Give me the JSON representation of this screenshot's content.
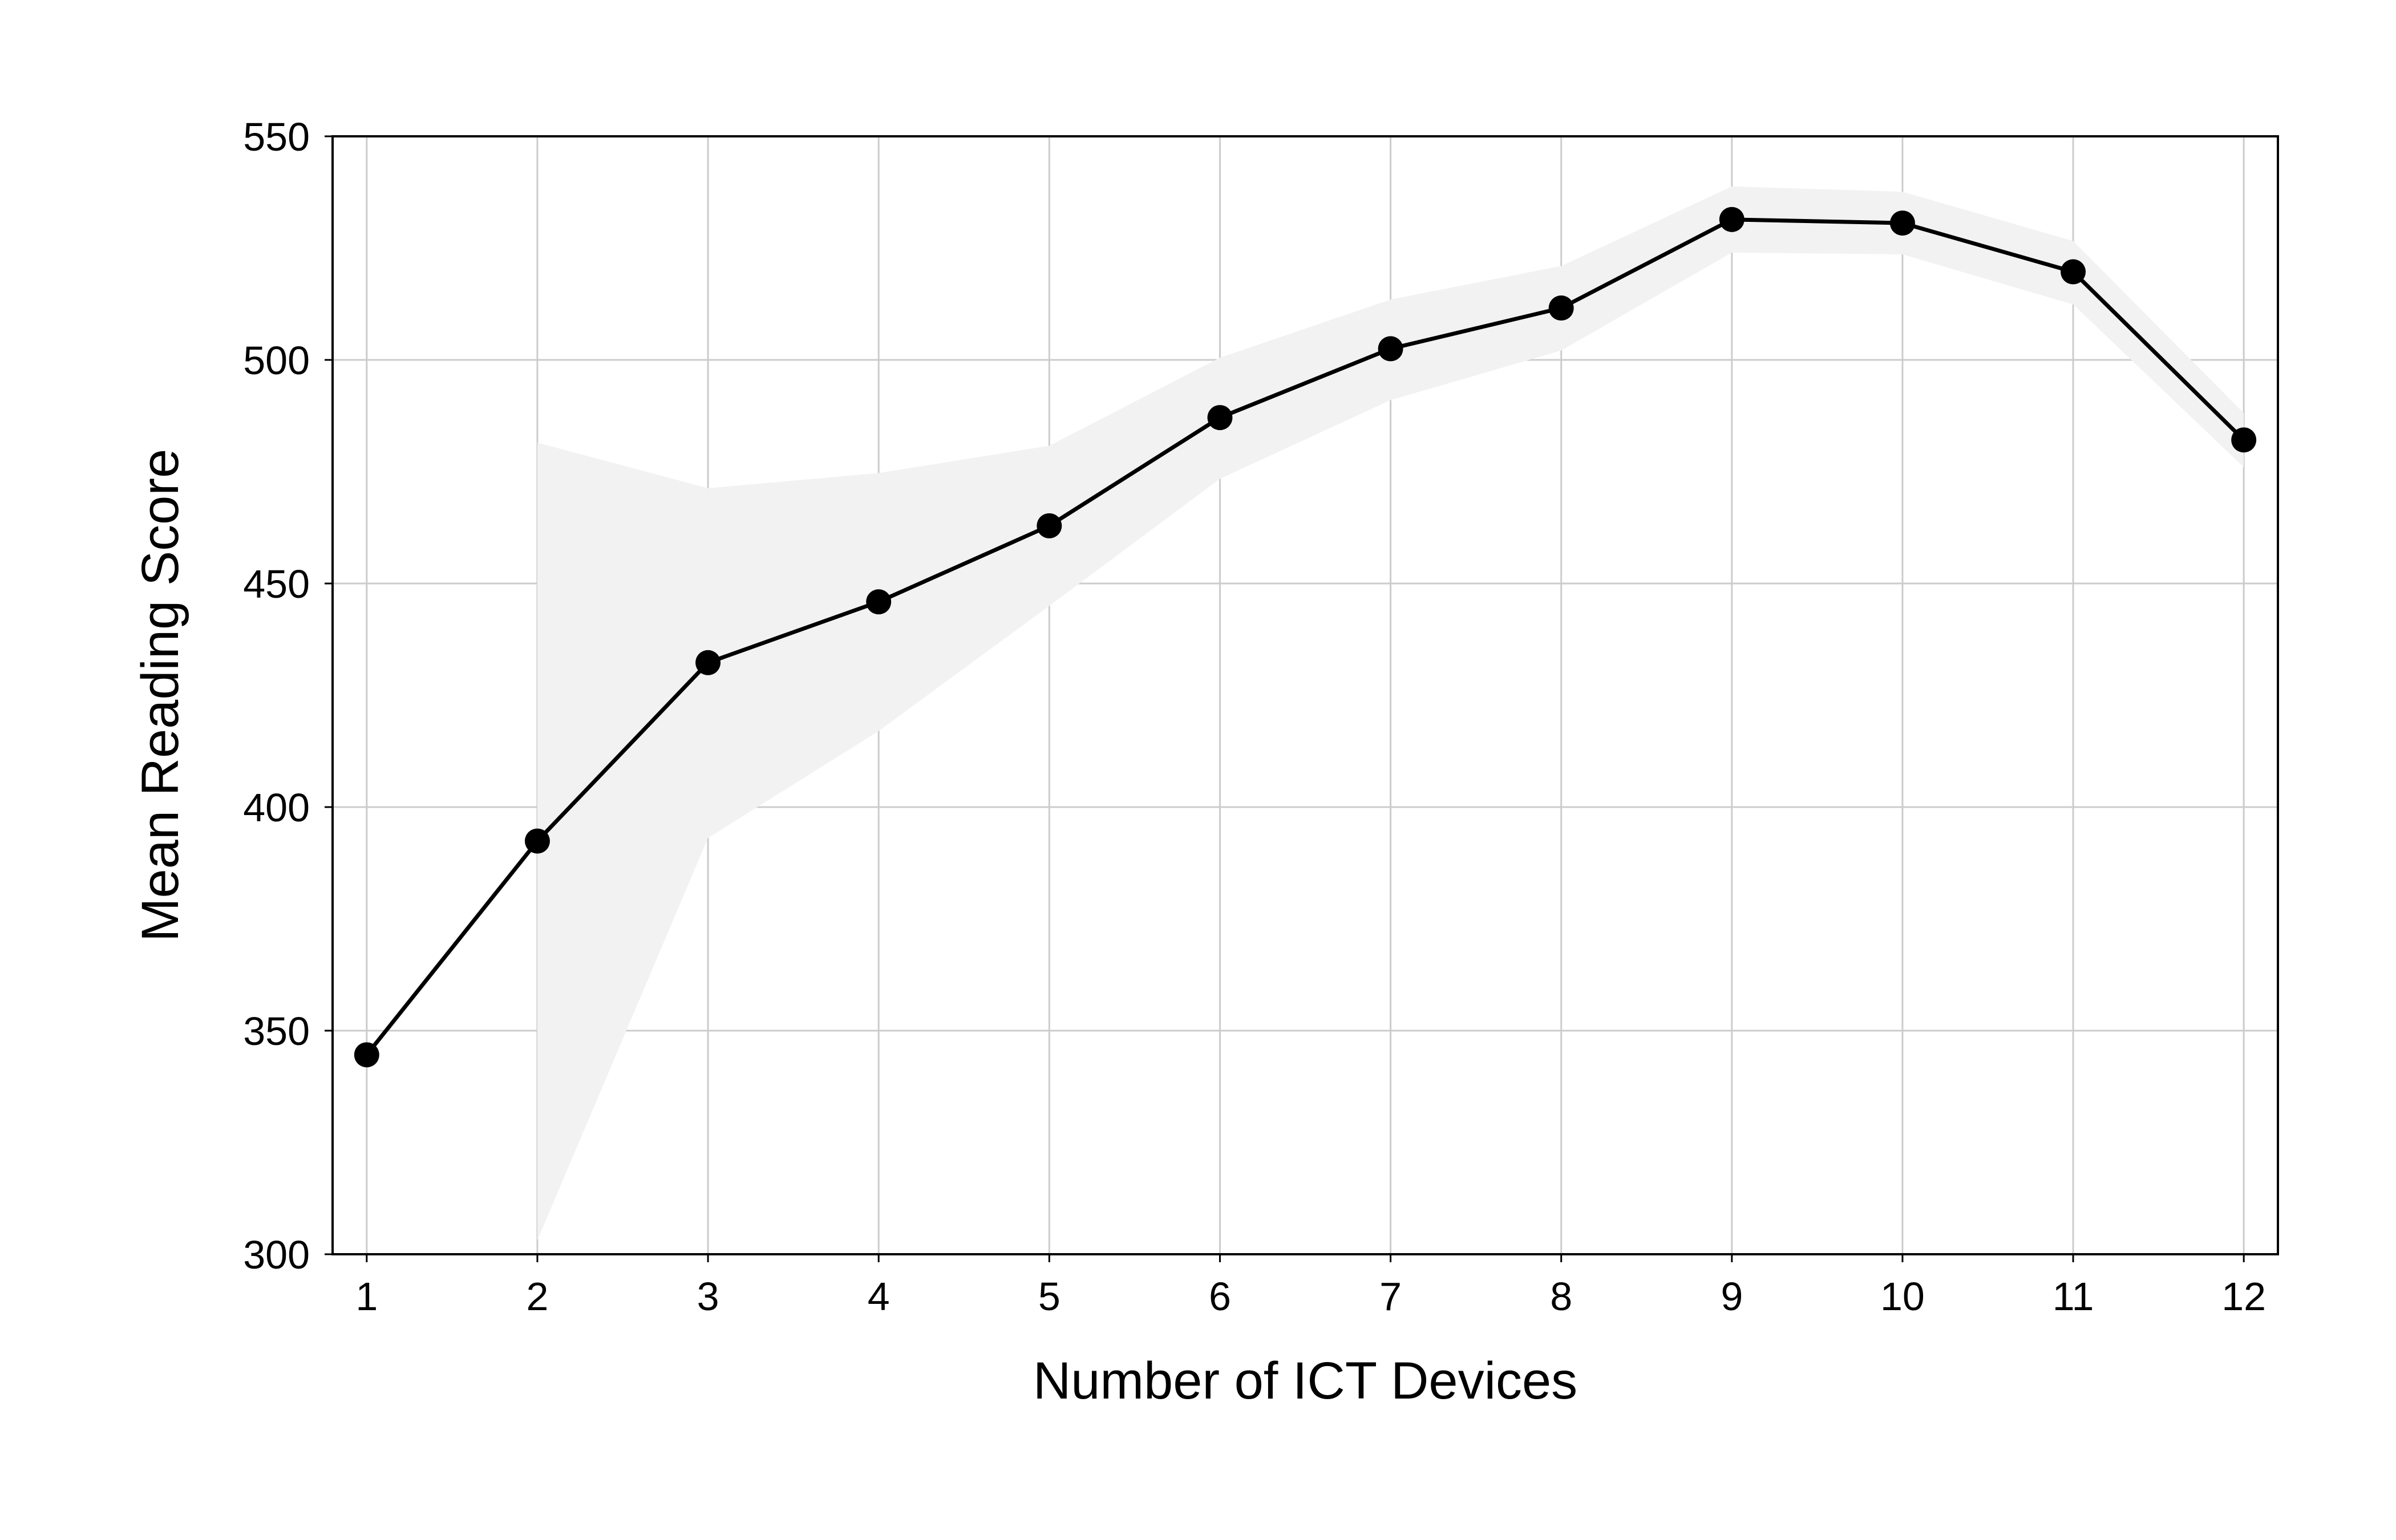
{
  "chart_data": {
    "type": "line",
    "title": "",
    "xlabel": "Number of ICT Devices",
    "ylabel": "Mean Reading Score",
    "x": [
      1,
      2,
      3,
      4,
      5,
      6,
      7,
      8,
      9,
      10,
      11,
      12
    ],
    "xticks": [
      "1",
      "2",
      "3",
      "4",
      "5",
      "6",
      "7",
      "8",
      "9",
      "10",
      "11",
      "12"
    ],
    "yticks": [
      "300",
      "350",
      "400",
      "450",
      "500",
      "550"
    ],
    "xlim": [
      0.8,
      12.2
    ],
    "ylim": [
      300,
      550
    ],
    "grid": true,
    "legend": "none",
    "series": [
      {
        "values": [
          344.6,
          392.4,
          432.3,
          445.9,
          462.9,
          487.1,
          502.5,
          511.6,
          531.4,
          530.6,
          519.7,
          482.1
        ],
        "band_upper": [
          null,
          481.5,
          471.3,
          474.7,
          480.8,
          500.5,
          513.5,
          521.0,
          538.8,
          537.6,
          526.6,
          488.1
        ],
        "band_lower": [
          null,
          303.1,
          393.1,
          417.0,
          445.0,
          473.4,
          491.0,
          502.1,
          524.0,
          523.6,
          512.4,
          476.0
        ],
        "color": "#000000",
        "band_color": "#f2f2f2"
      }
    ]
  }
}
